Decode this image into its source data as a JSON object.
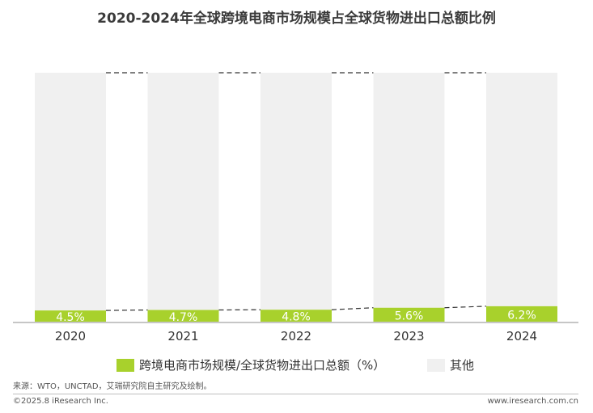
{
  "chart_data": {
    "type": "bar",
    "stacked": true,
    "percent_stacked": true,
    "title": "2020-2024年全球跨境电商市场规模占全球货物进出口总额比例",
    "categories": [
      "2020",
      "2021",
      "2022",
      "2023",
      "2024"
    ],
    "series": [
      {
        "name": "跨境电商市场规模/全球货物进出口总额（%）",
        "values": [
          4.5,
          4.7,
          4.8,
          5.6,
          6.2
        ],
        "labels": [
          "4.5%",
          "4.7%",
          "4.8%",
          "5.6%",
          "6.2%"
        ],
        "color": "#a8d12c"
      },
      {
        "name": "其他",
        "values": [
          95.5,
          95.3,
          95.2,
          94.4,
          93.8
        ],
        "color": "#f0f0f0"
      }
    ],
    "ylim": [
      0,
      100
    ],
    "connector_lines": "dashed",
    "grid": false,
    "legend_position": "bottom"
  },
  "source_text": "来源：WTO，UNCTAD，艾瑞研究院自主研究及绘制。",
  "footer": {
    "copyright": "©2025.8 iResearch Inc.",
    "website": "www.iresearch.com.cn"
  }
}
